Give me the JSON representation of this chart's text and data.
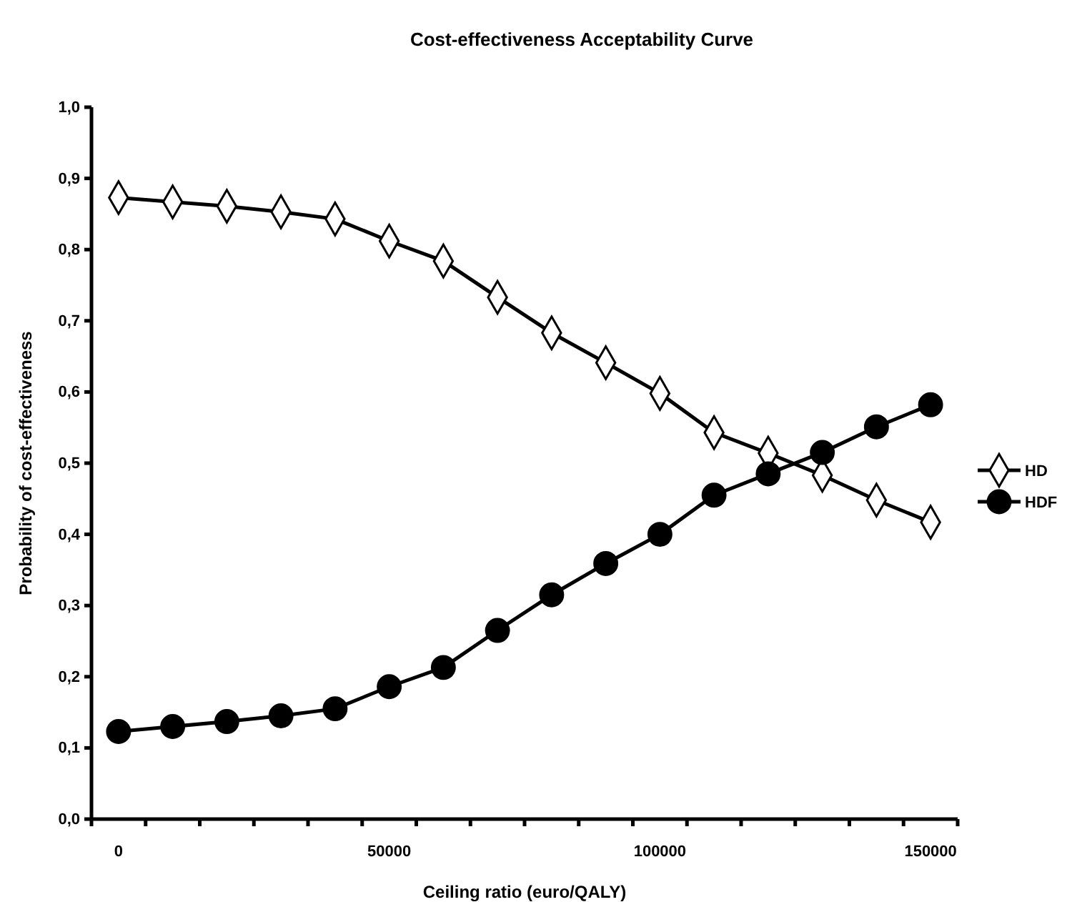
{
  "chart_data": {
    "type": "line",
    "title": "Cost-effectiveness Acceptability Curve",
    "xlabel": "Ceiling ratio (euro/QALY)",
    "ylabel": "Probability of cost-effectiveness",
    "categories": [
      "0",
      null,
      null,
      null,
      null,
      "50000",
      null,
      null,
      null,
      null,
      "100000",
      null,
      null,
      null,
      null,
      "150000"
    ],
    "ylim": [
      0,
      1
    ],
    "yticks": [
      {
        "value": 0,
        "label": "0,0"
      },
      {
        "value": 0.1,
        "label": "0,1"
      },
      {
        "value": 0.2,
        "label": "0,2"
      },
      {
        "value": 0.3,
        "label": "0,3"
      },
      {
        "value": 0.4,
        "label": "0,4"
      },
      {
        "value": 0.5,
        "label": "0,5"
      },
      {
        "value": 0.6,
        "label": "0,6"
      },
      {
        "value": 0.7,
        "label": "0,7"
      },
      {
        "value": 0.8,
        "label": "0,8"
      },
      {
        "value": 0.9,
        "label": "0,9"
      },
      {
        "value": 1,
        "label": "1,0"
      }
    ],
    "series": [
      {
        "name": "HD",
        "color": "#000000",
        "marker": "diamond",
        "values": [
          0.873,
          0.867,
          0.861,
          0.853,
          0.843,
          0.812,
          0.784,
          0.733,
          0.683,
          0.641,
          0.598,
          0.543,
          0.514,
          0.483,
          0.448,
          0.417
        ]
      },
      {
        "name": "HDF",
        "color": "#000000",
        "marker": "circle",
        "values": [
          0.123,
          0.13,
          0.137,
          0.145,
          0.155,
          0.186,
          0.213,
          0.265,
          0.315,
          0.359,
          0.4,
          0.455,
          0.485,
          0.515,
          0.551,
          0.582
        ]
      }
    ],
    "grid": false,
    "legend": "right",
    "line_style": "solid"
  }
}
